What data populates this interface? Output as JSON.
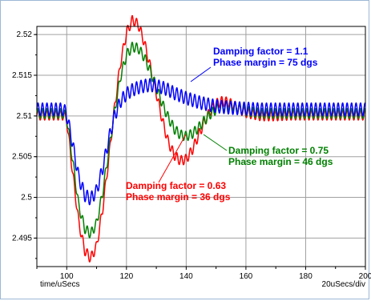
{
  "chart_data": {
    "type": "line",
    "title": "",
    "xlabel": "time/uSecs",
    "xscale_label": "20uSecs/div",
    "ylabel": "",
    "xlim": [
      90,
      200
    ],
    "ylim": [
      2.4915,
      2.521
    ],
    "grid": true,
    "legend": "none",
    "x_ticks": [
      100,
      120,
      140,
      160,
      180,
      200
    ],
    "x_tick_labels": [
      "100",
      "120",
      "140",
      "160",
      "180",
      "200"
    ],
    "y_ticks": [
      2.495,
      2.5,
      2.505,
      2.51,
      2.515,
      2.52
    ],
    "y_tick_labels": [
      "2.495",
      "2.5",
      "2.505",
      "2.51",
      "2.515",
      "2.52"
    ],
    "series": [
      {
        "color": "#ff0000",
        "ripple_amplitude": 0.0006,
        "ripple_period": 1.5,
        "x": [
          90,
          99,
          100,
          102,
          104,
          106,
          108,
          110,
          112,
          114,
          116,
          118,
          120,
          122,
          124,
          126,
          128,
          130,
          132,
          134,
          136,
          138,
          140,
          142,
          144,
          146,
          148,
          150,
          152,
          154,
          156,
          158,
          160,
          165,
          170,
          175,
          180,
          190,
          200
        ],
        "y": [
          2.5101,
          2.5101,
          2.5095,
          2.503,
          2.497,
          2.4935,
          2.4925,
          2.494,
          2.4985,
          2.5045,
          2.511,
          2.5165,
          2.5202,
          2.5218,
          2.5212,
          2.519,
          2.516,
          2.5128,
          2.5095,
          2.5068,
          2.5052,
          2.5045,
          2.5047,
          2.5058,
          2.5075,
          2.5092,
          2.5106,
          2.5115,
          2.5118,
          2.5117,
          2.5113,
          2.5108,
          2.5104,
          2.51,
          2.51,
          2.5101,
          2.5101,
          2.5101,
          2.5101
        ]
      },
      {
        "color": "#008000",
        "ripple_amplitude": 0.0006,
        "ripple_period": 1.5,
        "x": [
          90,
          99,
          100,
          102,
          104,
          106,
          108,
          110,
          112,
          114,
          116,
          118,
          120,
          122,
          124,
          126,
          128,
          130,
          132,
          134,
          136,
          138,
          140,
          142,
          144,
          146,
          148,
          150,
          152,
          154,
          156,
          158,
          160,
          165,
          170,
          175,
          180,
          190,
          200
        ],
        "y": [
          2.5103,
          2.5103,
          2.5098,
          2.5045,
          2.499,
          2.4962,
          2.4955,
          2.4968,
          2.5005,
          2.5055,
          2.5105,
          2.5148,
          2.5175,
          2.5185,
          2.5183,
          2.5172,
          2.5155,
          2.5135,
          2.5115,
          2.5098,
          2.5084,
          2.5077,
          2.5075,
          2.5078,
          2.5085,
          2.5094,
          2.5102,
          2.5108,
          2.5112,
          2.5113,
          2.5112,
          2.5109,
          2.5106,
          2.5103,
          2.5103,
          2.5103,
          2.5103,
          2.5103,
          2.5103
        ]
      },
      {
        "color": "#0000ff",
        "ripple_amplitude": 0.0008,
        "ripple_period": 1.5,
        "x": [
          90,
          99,
          100,
          102,
          104,
          106,
          108,
          110,
          112,
          114,
          116,
          118,
          120,
          122,
          124,
          126,
          128,
          130,
          132,
          134,
          136,
          138,
          140,
          145,
          150,
          155,
          160,
          165,
          170,
          175,
          180,
          190,
          200
        ],
        "y": [
          2.5108,
          2.5108,
          2.5102,
          2.5065,
          2.5025,
          2.5003,
          2.4998,
          2.5008,
          2.5035,
          2.507,
          2.51,
          2.5118,
          2.5127,
          2.5132,
          2.5135,
          2.5137,
          2.5138,
          2.5137,
          2.5135,
          2.5132,
          2.5128,
          2.5125,
          2.5122,
          2.5116,
          2.5112,
          2.511,
          2.5109,
          2.5108,
          2.5108,
          2.5108,
          2.5108,
          2.5108,
          2.5108
        ]
      }
    ],
    "annotations": [
      {
        "id": "blue",
        "color": "#0000ff",
        "lines": [
          "Damping factor = 1.1",
          "Phase margin = 75 dgs"
        ]
      },
      {
        "id": "green",
        "color": "#008000",
        "lines": [
          "Damping factor = 0.75",
          "Phase margin = 46 dgs"
        ]
      },
      {
        "id": "red",
        "color": "#ff0000",
        "lines": [
          "Damping factor = 0.63",
          "Phase margin = 36 dgs"
        ]
      }
    ]
  }
}
